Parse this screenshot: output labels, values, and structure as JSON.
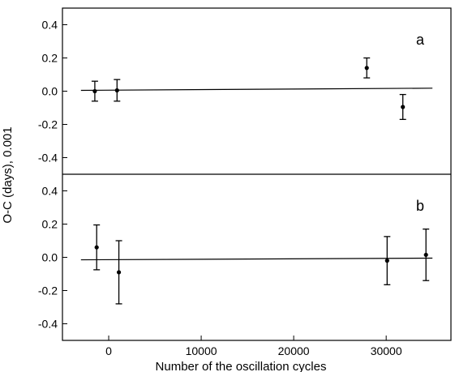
{
  "chart_data": [
    {
      "panel_label": "a",
      "type": "scatter",
      "ylim": [
        -0.5,
        0.5
      ],
      "yticks": [
        0.4,
        0.2,
        0.0,
        -0.2,
        -0.4
      ],
      "ytick_labels": [
        "0.4",
        "0.2",
        "0.0",
        "-0.2",
        "-0.4"
      ],
      "points": [
        {
          "x": -1500,
          "y": 0.0,
          "err": 0.06
        },
        {
          "x": 900,
          "y": 0.005,
          "err": 0.065
        },
        {
          "x": 27900,
          "y": 0.14,
          "err": 0.06
        },
        {
          "x": 31800,
          "y": -0.095,
          "err": 0.075
        }
      ],
      "fit_line": {
        "x": [
          -3000,
          35000
        ],
        "y": [
          0.005,
          0.018
        ]
      }
    },
    {
      "panel_label": "b",
      "type": "scatter",
      "ylim": [
        -0.5,
        0.5
      ],
      "yticks": [
        0.4,
        0.2,
        0.0,
        -0.2,
        -0.4
      ],
      "ytick_labels": [
        "0.4",
        "0.2",
        "0.0",
        "-0.2",
        "-0.4"
      ],
      "points": [
        {
          "x": -1300,
          "y": 0.06,
          "err": 0.135
        },
        {
          "x": 1100,
          "y": -0.09,
          "err": 0.19
        },
        {
          "x": 30100,
          "y": -0.02,
          "err": 0.145
        },
        {
          "x": 34300,
          "y": 0.015,
          "err": 0.155
        }
      ],
      "fit_line": {
        "x": [
          -3000,
          35000
        ],
        "y": [
          -0.015,
          -0.005
        ]
      }
    }
  ],
  "axes": {
    "xlabel": "Number of the oscillation cycles",
    "ylabel": "O-C (days), 0.001",
    "xlim": [
      -5000,
      37000
    ],
    "xticks": [
      0,
      10000,
      20000,
      30000
    ],
    "xtick_labels": [
      "0",
      "10000",
      "20000",
      "30000"
    ],
    "grid": false
  }
}
